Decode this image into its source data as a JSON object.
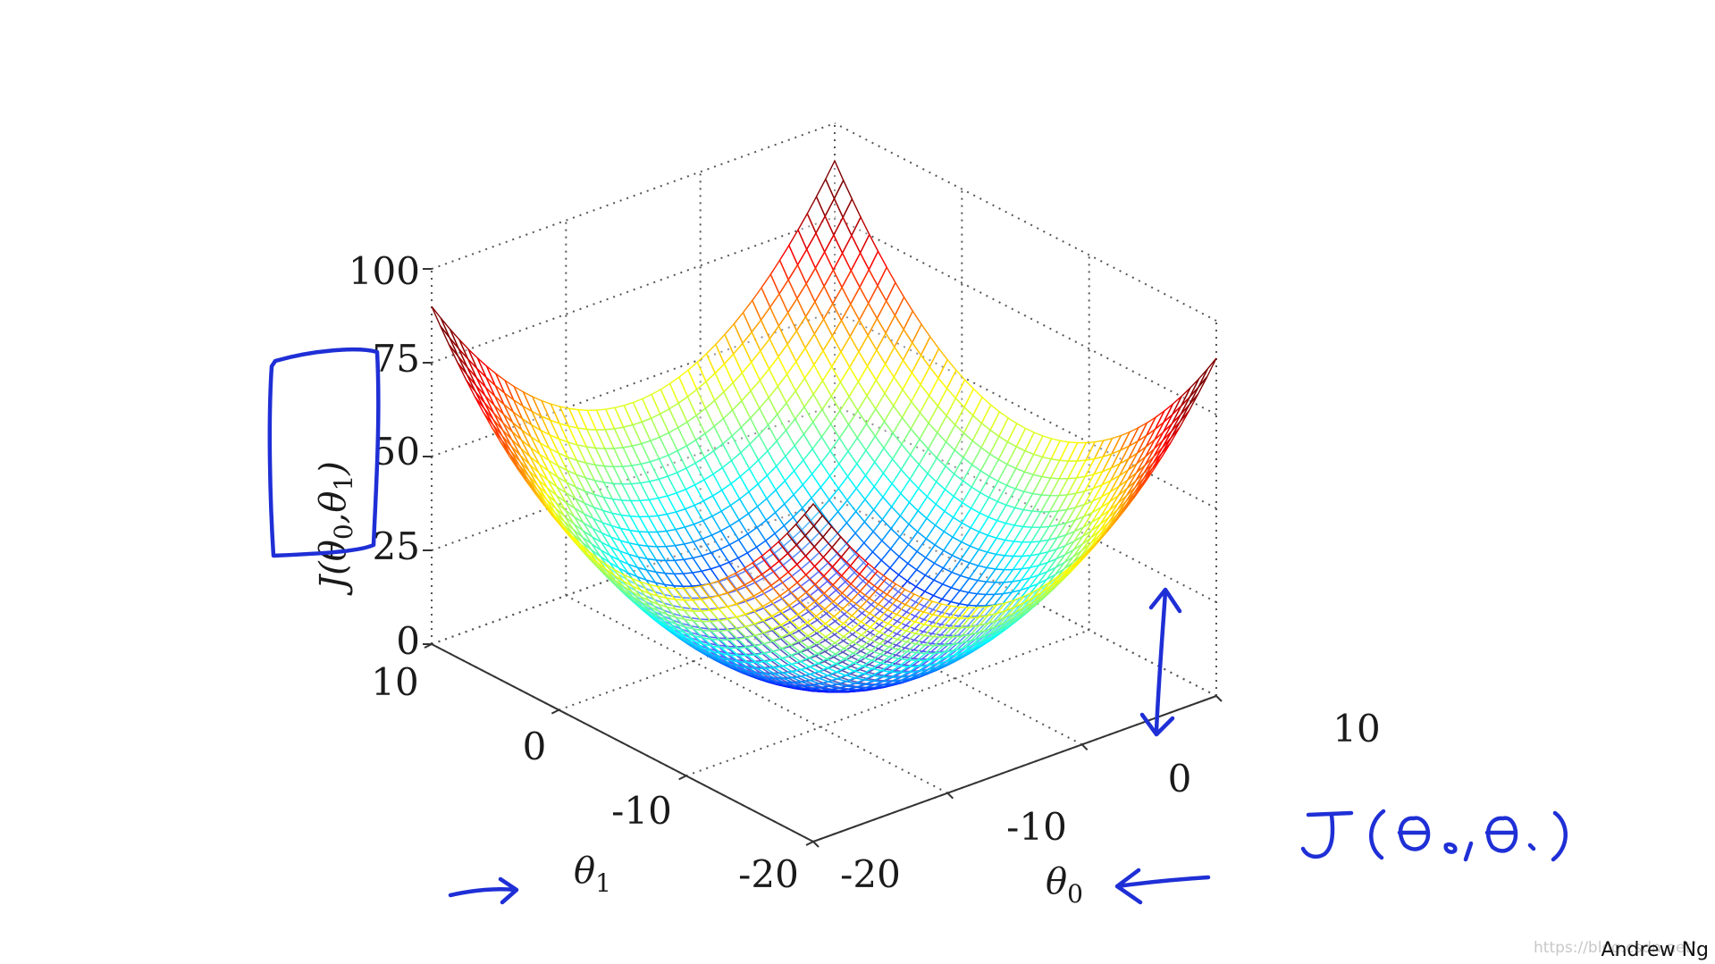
{
  "chart_data": {
    "type": "surface",
    "colormap": "jet",
    "function": "J(theta0, theta1) = ((theta0+5)^2 + (theta1+5)^2) / 5",
    "x_axis": {
      "label": "θ0",
      "ticks": [
        "-20",
        "-10",
        "0",
        "10"
      ],
      "range": [
        -20,
        10
      ]
    },
    "y_axis": {
      "label": "θ1",
      "ticks": [
        "-20",
        "-10",
        "0",
        "10"
      ],
      "range": [
        -20,
        10
      ]
    },
    "z_axis": {
      "label": "J(θ0,θ1)",
      "ticks": [
        "0",
        "25",
        "50",
        "75",
        "100"
      ],
      "range": [
        0,
        100
      ]
    },
    "grid": true,
    "mesh_resolution": 44
  },
  "annotations": {
    "handwritten_label": "J(θ0,θ1)"
  },
  "credit": "Andrew Ng",
  "watermark": "https://blog.csdn.net/"
}
